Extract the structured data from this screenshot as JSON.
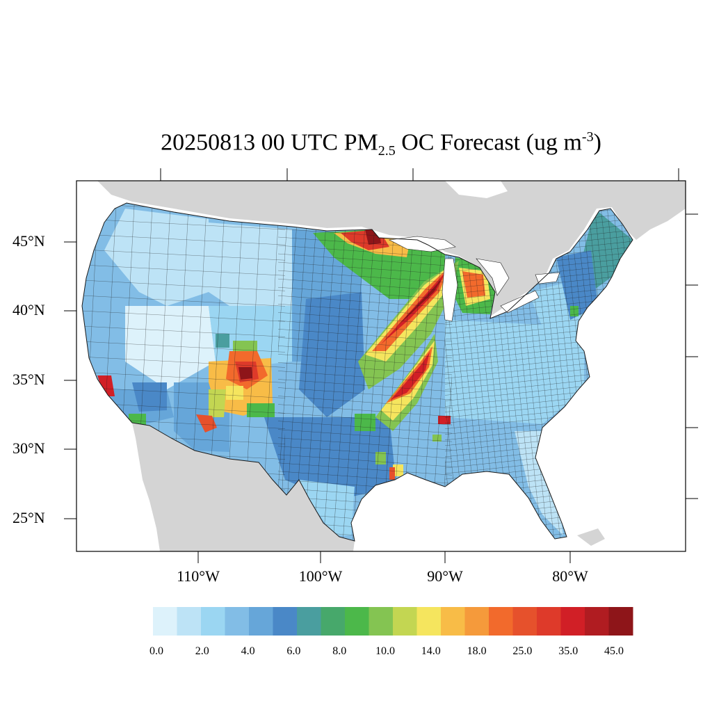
{
  "title": {
    "date": "20250813 00 UTC PM",
    "sub": "2.5",
    "mid": " OC Forecast (ug m",
    "sup": "-3",
    "end": ")"
  },
  "lat_labels": [
    "45°N",
    "40°N",
    "35°N",
    "30°N",
    "25°N"
  ],
  "lon_labels": [
    "110°W",
    "100°W",
    "90°W",
    "80°W"
  ],
  "colorbar": {
    "colors": [
      "#ddf2fb",
      "#bde3f6",
      "#9bd6f2",
      "#82bde6",
      "#66a6d9",
      "#4a88c7",
      "#4a9e9f",
      "#47a86b",
      "#4cb84a",
      "#84c452",
      "#c3d652",
      "#f5e55e",
      "#f8bc47",
      "#f59a3b",
      "#f26a2c",
      "#e6512c",
      "#de3a2a",
      "#d11f26",
      "#b01c21",
      "#8e1519"
    ],
    "labels": [
      "0.0",
      "2.0",
      "4.0",
      "6.0",
      "8.0",
      "10.0",
      "14.0",
      "18.0",
      "25.0",
      "35.0",
      "45.0"
    ]
  },
  "colors": {
    "land_outside": "#d4d4d4",
    "background": "#ffffff"
  }
}
